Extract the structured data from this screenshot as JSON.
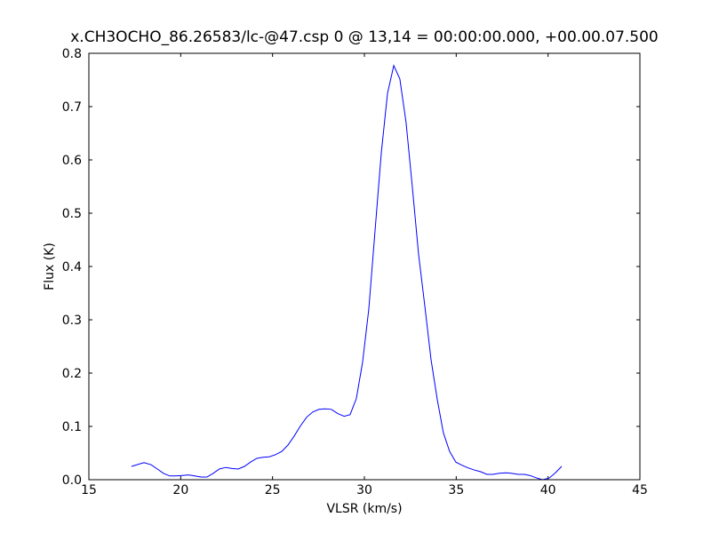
{
  "chart_data": {
    "type": "line",
    "title": "x.CH3OCHO_86.26583/lc-@47.csp 0 @ 13,14 = 00:00:00.000, +00.00.07.500",
    "xlabel": "VLSR (km/s)",
    "ylabel": "Flux (K)",
    "color": "#0000ff",
    "x": [
      17.32,
      18.0,
      18.39,
      18.73,
      19.06,
      19.4,
      19.74,
      20.08,
      20.42,
      20.76,
      21.1,
      21.43,
      21.77,
      22.1,
      22.45,
      22.79,
      23.13,
      23.47,
      23.8,
      24.14,
      24.48,
      24.82,
      25.16,
      25.5,
      25.84,
      26.18,
      26.5,
      26.85,
      27.19,
      27.53,
      27.87,
      28.2,
      28.55,
      28.9,
      29.22,
      29.56,
      29.9,
      30.24,
      30.58,
      30.92,
      31.26,
      31.6,
      31.93,
      32.27,
      32.6,
      32.95,
      33.3,
      33.63,
      33.97,
      34.3,
      34.64,
      34.98,
      35.32,
      35.66,
      36.0,
      36.33,
      36.67,
      37.0,
      37.35,
      37.7,
      38.0,
      38.37,
      38.7,
      39.0,
      39.4,
      39.7,
      40.06,
      40.4,
      40.74
    ],
    "y": [
      0.025,
      0.032,
      0.028,
      0.02,
      0.012,
      0.007,
      0.007,
      0.008,
      0.009,
      0.007,
      0.005,
      0.005,
      0.012,
      0.02,
      0.023,
      0.021,
      0.02,
      0.025,
      0.033,
      0.04,
      0.042,
      0.043,
      0.047,
      0.053,
      0.065,
      0.082,
      0.1,
      0.117,
      0.127,
      0.132,
      0.133,
      0.132,
      0.124,
      0.119,
      0.122,
      0.152,
      0.22,
      0.32,
      0.467,
      0.613,
      0.725,
      0.777,
      0.752,
      0.67,
      0.553,
      0.423,
      0.323,
      0.225,
      0.15,
      0.088,
      0.053,
      0.033,
      0.027,
      0.022,
      0.018,
      0.015,
      0.01,
      0.01,
      0.012,
      0.013,
      0.012,
      0.01,
      0.01,
      0.008,
      0.003,
      0.0,
      0.003,
      0.013,
      0.025
    ],
    "xlim": [
      15,
      45
    ],
    "xticks": [
      15,
      20,
      25,
      30,
      35,
      40,
      45
    ],
    "ylim": [
      0,
      0.8
    ],
    "yticks": [
      {
        "value": 0,
        "label": "0.0"
      },
      0.1,
      0.2,
      0.3,
      0.4,
      0.5,
      0.6,
      0.7,
      0.8
    ]
  }
}
